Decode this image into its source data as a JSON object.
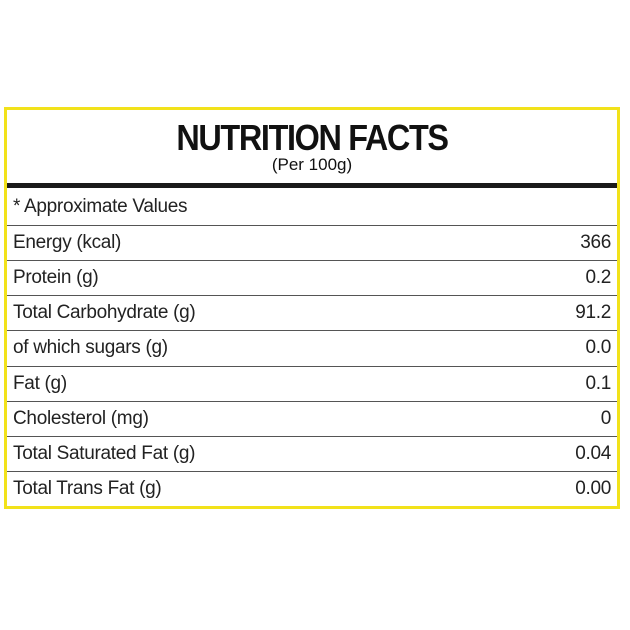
{
  "label": {
    "title": "NUTRITION FACTS",
    "subtitle": "(Per 100g)",
    "note": "* Approximate Values",
    "frame_color": "#f2e21a",
    "rows": [
      {
        "name": "Energy (kcal)",
        "value": "366"
      },
      {
        "name": "Protein (g)",
        "value": "0.2"
      },
      {
        "name": "Total Carbohydrate (g)",
        "value": "91.2"
      },
      {
        "name": "of which sugars (g)",
        "value": "0.0"
      },
      {
        "name": "Fat (g)",
        "value": "0.1"
      },
      {
        "name": "Cholesterol (mg)",
        "value": "0"
      },
      {
        "name": "Total Saturated Fat (g)",
        "value": "0.04"
      },
      {
        "name": "Total Trans Fat (g)",
        "value": "0.00"
      }
    ]
  }
}
